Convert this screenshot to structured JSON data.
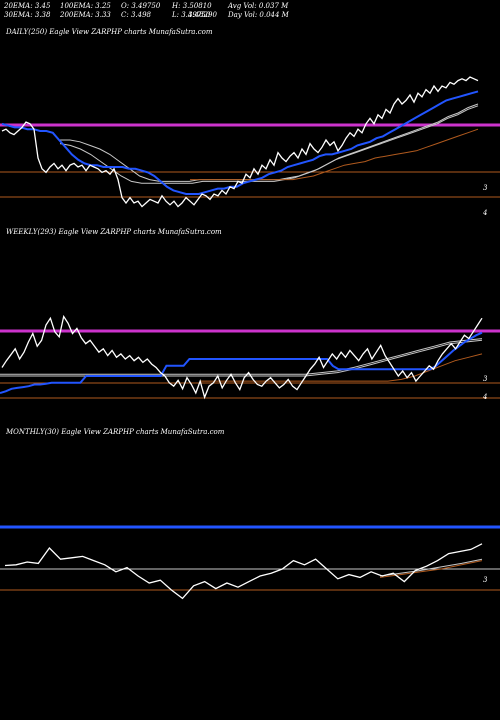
{
  "header": {
    "ema20": "20EMA: 3.45",
    "ema100": "100EMA: 3.25",
    "open": "O: 3.49750",
    "high": "H: 3.50810",
    "avgvol": "Avg Vol: 0.037  M",
    "ema30": "30EMA: 3.38",
    "ema200": "200EMA: 3.33",
    "close": "C: 3.498",
    "low": "L: 3.49750",
    "low_overlap": "3.48290",
    "dayvol": "Day Vol: 0.044  M"
  },
  "chart_data": [
    {
      "type": "line",
      "title": "DAILY(250) Eagle  View  ZARPHP charts MunafaSutra.com",
      "right_labels": [
        "3",
        "4"
      ],
      "colors": {
        "price": "#ffffff",
        "ema_fast": "#2255ff",
        "ema_slow": "#c8c8c8",
        "support": "#b05a1e",
        "resistance": "#cc33cc"
      },
      "series": [
        {
          "values": [
            3.45,
            3.46,
            3.44,
            3.43,
            3.45,
            3.47,
            3.5,
            3.49,
            3.46,
            3.3,
            3.24,
            3.22,
            3.25,
            3.27,
            3.24,
            3.26,
            3.23,
            3.26,
            3.27,
            3.25,
            3.26,
            3.23,
            3.26,
            3.25,
            3.24,
            3.22,
            3.23,
            3.21,
            3.24,
            3.18,
            3.08,
            3.05,
            3.08,
            3.05,
            3.06,
            3.03,
            3.05,
            3.07,
            3.06,
            3.05,
            3.09,
            3.06,
            3.04,
            3.06,
            3.03,
            3.05,
            3.08,
            3.06,
            3.04,
            3.07,
            3.1,
            3.09,
            3.07,
            3.1,
            3.09,
            3.12,
            3.1,
            3.14,
            3.13,
            3.17,
            3.16,
            3.21,
            3.19,
            3.24,
            3.21,
            3.26,
            3.24,
            3.29,
            3.26,
            3.33,
            3.3,
            3.28,
            3.31,
            3.33,
            3.3,
            3.35,
            3.32,
            3.38,
            3.35,
            3.33,
            3.36,
            3.4,
            3.37,
            3.39,
            3.34,
            3.37,
            3.41,
            3.44,
            3.42,
            3.46,
            3.44,
            3.49,
            3.52,
            3.49,
            3.54,
            3.52,
            3.57,
            3.55,
            3.6,
            3.63,
            3.6,
            3.62,
            3.65,
            3.61,
            3.66,
            3.64,
            3.68,
            3.66,
            3.7,
            3.67,
            3.7,
            3.69,
            3.72,
            3.71,
            3.73,
            3.74,
            3.73,
            3.75,
            3.74,
            3.73
          ]
        },
        {
          "values": [
            3.49,
            3.48,
            3.47,
            3.47,
            3.46,
            3.46,
            3.45,
            3.45,
            3.44,
            3.4,
            3.36,
            3.32,
            3.29,
            3.27,
            3.26,
            3.26,
            3.25,
            3.25,
            3.25,
            3.25,
            3.24,
            3.24,
            3.23,
            3.22,
            3.2,
            3.17,
            3.14,
            3.12,
            3.11,
            3.1,
            3.1,
            3.1,
            3.11,
            3.12,
            3.13,
            3.13,
            3.14,
            3.14,
            3.16,
            3.17,
            3.18,
            3.19,
            3.21,
            3.22,
            3.23,
            3.25,
            3.26,
            3.27,
            3.28,
            3.29,
            3.31,
            3.32,
            3.32,
            3.33,
            3.34,
            3.35,
            3.37,
            3.38,
            3.39,
            3.41,
            3.42,
            3.44,
            3.46,
            3.48,
            3.5,
            3.52,
            3.54,
            3.56,
            3.58,
            3.6,
            3.62,
            3.63,
            3.64,
            3.65,
            3.66,
            3.67
          ]
        },
        {
          "values": [
            3.4,
            3.4,
            3.39,
            3.37,
            3.35,
            3.32,
            3.28,
            3.24,
            3.2,
            3.18,
            3.17,
            3.17,
            3.17,
            3.17,
            3.18,
            3.18,
            3.18,
            3.18,
            3.18,
            3.18,
            3.18,
            3.18,
            3.18,
            3.19,
            3.2,
            3.22,
            3.24,
            3.27,
            3.3,
            3.32,
            3.34,
            3.36,
            3.38,
            3.4,
            3.42,
            3.44,
            3.46,
            3.48,
            3.5,
            3.53,
            3.55,
            3.58,
            3.6
          ]
        },
        {
          "values": [
            3.38,
            3.37,
            3.35,
            3.32,
            3.28,
            3.24,
            3.2,
            3.17,
            3.16,
            3.16,
            3.16,
            3.16,
            3.16,
            3.16,
            3.17,
            3.17,
            3.17,
            3.17,
            3.17,
            3.17,
            3.17,
            3.17,
            3.18,
            3.19,
            3.21,
            3.23,
            3.26,
            3.29,
            3.31,
            3.33,
            3.35,
            3.37,
            3.39,
            3.41,
            3.43,
            3.45,
            3.47,
            3.49,
            3.52,
            3.54,
            3.57,
            3.59
          ]
        },
        {
          "values": [
            3.18,
            3.18,
            3.18,
            3.18,
            3.18,
            3.18,
            3.18,
            3.18,
            3.18,
            3.18,
            3.18,
            3.19,
            3.2,
            3.22,
            3.24,
            3.26,
            3.27,
            3.28,
            3.3,
            3.31,
            3.32,
            3.33,
            3.34,
            3.36,
            3.38,
            3.4,
            3.42,
            3.44,
            3.46
          ]
        },
        {
          "values": [
            3.48,
            3.48
          ]
        },
        {
          "values": [
            3.14,
            3.14
          ]
        },
        {
          "values": [
            3.03,
            3.03
          ]
        }
      ]
    },
    {
      "type": "line",
      "title": "WEEKLY(293) Eagle  View  ZARPHP charts MunafaSutra.com",
      "right_labels": [
        "3",
        "4"
      ],
      "colors": {
        "price": "#ffffff",
        "ema_fast": "#2255ff",
        "ema_slow": "#c8c8c8",
        "support": "#b05a1e",
        "resistance": "#cc33cc"
      },
      "series": [
        {
          "values": [
            3.3,
            3.38,
            3.45,
            3.52,
            3.4,
            3.48,
            3.6,
            3.7,
            3.55,
            3.62,
            3.8,
            3.88,
            3.72,
            3.66,
            3.9,
            3.82,
            3.7,
            3.76,
            3.65,
            3.58,
            3.62,
            3.55,
            3.48,
            3.52,
            3.44,
            3.5,
            3.42,
            3.46,
            3.4,
            3.44,
            3.38,
            3.42,
            3.36,
            3.4,
            3.34,
            3.3,
            3.24,
            3.2,
            3.12,
            3.08,
            3.15,
            3.05,
            3.18,
            3.1,
            3.0,
            3.14,
            2.95,
            3.08,
            3.12,
            3.2,
            3.06,
            3.15,
            3.22,
            3.12,
            3.04,
            3.18,
            3.24,
            3.16,
            3.1,
            3.08,
            3.14,
            3.18,
            3.12,
            3.06,
            3.1,
            3.16,
            3.08,
            3.04,
            3.12,
            3.2,
            3.28,
            3.34,
            3.42,
            3.3,
            3.38,
            3.46,
            3.4,
            3.48,
            3.42,
            3.5,
            3.44,
            3.38,
            3.46,
            3.52,
            3.4,
            3.48,
            3.56,
            3.44,
            3.36,
            3.28,
            3.2,
            3.26,
            3.18,
            3.24,
            3.14,
            3.2,
            3.26,
            3.32,
            3.28,
            3.38,
            3.46,
            3.52,
            3.58,
            3.52,
            3.6,
            3.68,
            3.64,
            3.72,
            3.8,
            3.88
          ]
        },
        {
          "values": [
            3.0,
            3.02,
            3.05,
            3.06,
            3.07,
            3.08,
            3.1,
            3.1,
            3.11,
            3.12,
            3.12,
            3.12,
            3.12,
            3.12,
            3.12,
            3.2,
            3.2,
            3.2,
            3.2,
            3.2,
            3.2,
            3.2,
            3.2,
            3.2,
            3.2,
            3.2,
            3.2,
            3.2,
            3.2,
            3.32,
            3.32,
            3.32,
            3.32,
            3.4,
            3.4,
            3.4,
            3.4,
            3.4,
            3.4,
            3.4,
            3.4,
            3.4,
            3.4,
            3.4,
            3.4,
            3.4,
            3.4,
            3.4,
            3.4,
            3.4,
            3.4,
            3.4,
            3.4,
            3.4,
            3.4,
            3.4,
            3.4,
            3.4,
            3.32,
            3.28,
            3.28,
            3.28,
            3.28,
            3.28,
            3.28,
            3.28,
            3.28,
            3.28,
            3.28,
            3.28,
            3.28,
            3.28,
            3.28,
            3.28,
            3.28,
            3.28,
            3.32,
            3.38,
            3.44,
            3.5,
            3.55,
            3.6,
            3.64,
            3.68,
            3.71
          ]
        },
        {
          "values": [
            3.22,
            3.22,
            3.22,
            3.22,
            3.22,
            3.22,
            3.22,
            3.22,
            3.22,
            3.22,
            3.22,
            3.22,
            3.22,
            3.22,
            3.22,
            3.22,
            3.22,
            3.22,
            3.22,
            3.22,
            3.24,
            3.26,
            3.3,
            3.35,
            3.4,
            3.45,
            3.5,
            3.55,
            3.6,
            3.62,
            3.64
          ]
        },
        {
          "values": [
            3.2,
            3.2,
            3.2,
            3.2,
            3.2,
            3.2,
            3.2,
            3.2,
            3.2,
            3.2,
            3.2,
            3.2,
            3.2,
            3.2,
            3.2,
            3.2,
            3.2,
            3.2,
            3.2,
            3.2,
            3.22,
            3.24,
            3.28,
            3.33,
            3.38,
            3.43,
            3.48,
            3.53,
            3.58,
            3.6,
            3.62
          ]
        },
        {
          "values": [
            3.14,
            3.14,
            3.14,
            3.14,
            3.14,
            3.14,
            3.14,
            3.14,
            3.14,
            3.14,
            3.14,
            3.14,
            3.14,
            3.14,
            3.14,
            3.16,
            3.2,
            3.26,
            3.32,
            3.38,
            3.42,
            3.46
          ]
        },
        {
          "values": [
            3.6,
            3.6
          ]
        },
        {
          "values": [
            3.14,
            3.14
          ]
        },
        {
          "values": [
            3.0,
            3.0
          ]
        }
      ]
    },
    {
      "type": "line",
      "title": "MONTHLY(30) Eagle  View  ZARPHP charts MunafaSutra.com",
      "right_labels": [
        "3"
      ],
      "colors": {
        "price": "#ffffff",
        "ema_fast": "#2255ff",
        "ema_slow": "#c8c8c8",
        "support": "#b05a1e",
        "resistance": "#cc33cc"
      },
      "series": [
        {
          "values": [
            3.35,
            3.36,
            3.4,
            3.38,
            3.6,
            3.44,
            3.46,
            3.48,
            3.42,
            3.36,
            3.26,
            3.32,
            3.2,
            3.1,
            3.14,
            3.0,
            2.88,
            3.06,
            3.12,
            3.02,
            3.1,
            3.04,
            3.12,
            3.2,
            3.24,
            3.3,
            3.42,
            3.36,
            3.44,
            3.3,
            3.16,
            3.22,
            3.18,
            3.26,
            3.2,
            3.24,
            3.12,
            3.28,
            3.34,
            3.42,
            3.52,
            3.55,
            3.58,
            3.66
          ]
        },
        {
          "values": [
            3.48,
            3.48
          ]
        },
        {
          "values": [
            3.24,
            3.24
          ]
        },
        {
          "values": [
            3.2,
            3.24,
            3.28,
            3.33,
            3.38,
            3.44
          ]
        },
        {
          "values": [
            3.18,
            3.22,
            3.26,
            3.3,
            3.36,
            3.42
          ]
        },
        {
          "values": [
            3.14,
            3.14
          ]
        }
      ]
    }
  ]
}
